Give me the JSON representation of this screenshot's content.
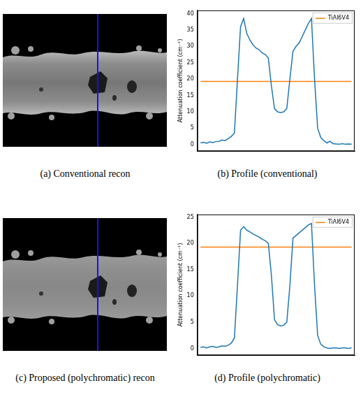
{
  "chart_data": [
    {
      "type": "line",
      "caption": "(b) Profile (conventional)",
      "y_label": "Attenuation coefficient (cm⁻¹)",
      "x": [
        0,
        2,
        4,
        6,
        8,
        10,
        12,
        14,
        16,
        18,
        20,
        22,
        24,
        26,
        28,
        30,
        32,
        34,
        36,
        38,
        40,
        42,
        44,
        46,
        48,
        50,
        52,
        54,
        56,
        58,
        60,
        62,
        64,
        66,
        68,
        70,
        72,
        74,
        76,
        78,
        80,
        82,
        84,
        86,
        88,
        90,
        92,
        94,
        96,
        98
      ],
      "series": [
        {
          "color": "#1f77b4",
          "values": [
            0.5,
            0.7,
            0.4,
            0.8,
            0.6,
            0.9,
            1.0,
            1.4,
            1.2,
            1.8,
            2.5,
            3.5,
            20,
            36,
            38.5,
            34,
            32,
            30.5,
            29.5,
            29,
            28,
            27.5,
            26.5,
            18,
            11,
            10,
            9.8,
            10,
            11,
            20,
            28.5,
            30,
            31,
            33,
            35,
            37,
            38.5,
            20,
            5,
            2.2,
            1.2,
            0.5,
            1.0,
            0.3,
            0.2,
            0.1,
            0.3,
            0.1,
            0.2,
            0.1
          ]
        },
        {
          "name": "TiAl6V4",
          "color": "#ff7f0e",
          "values": [
            19.3,
            19.3,
            19.3,
            19.3,
            19.3,
            19.3,
            19.3,
            19.3,
            19.3,
            19.3,
            19.3,
            19.3,
            19.3,
            19.3,
            19.3,
            19.3,
            19.3,
            19.3,
            19.3,
            19.3,
            19.3,
            19.3,
            19.3,
            19.3,
            19.3,
            19.3,
            19.3,
            19.3,
            19.3,
            19.3,
            19.3,
            19.3,
            19.3,
            19.3,
            19.3,
            19.3,
            19.3,
            19.3,
            19.3,
            19.3,
            19.3,
            19.3,
            19.3,
            19.3,
            19.3,
            19.3,
            19.3,
            19.3,
            19.3,
            19.3
          ]
        }
      ],
      "xlim": [
        -2,
        100
      ],
      "xticks": [],
      "ylim": [
        -2,
        41
      ],
      "yticks": [
        0,
        5,
        10,
        15,
        20,
        25,
        30,
        35,
        40
      ],
      "grid": false,
      "legend": "upper right",
      "tick_labels": "y"
    },
    {
      "type": "line",
      "caption": "(d) Profile (polychromatic)",
      "y_label": "Attenuation coefficient (cm⁻¹)",
      "x": [
        0,
        2,
        4,
        6,
        8,
        10,
        12,
        14,
        16,
        18,
        20,
        22,
        24,
        26,
        28,
        30,
        32,
        34,
        36,
        38,
        40,
        42,
        44,
        46,
        48,
        50,
        52,
        54,
        56,
        58,
        60,
        62,
        64,
        66,
        68,
        70,
        72,
        74,
        76,
        78,
        80,
        82,
        84,
        86,
        88,
        90,
        92,
        94,
        96,
        98
      ],
      "series": [
        {
          "color": "#1f77b4",
          "values": [
            0.2,
            0.3,
            0.1,
            0.3,
            0.4,
            0.2,
            0.3,
            0.5,
            0.4,
            0.6,
            1.0,
            2.0,
            12,
            22.5,
            23.2,
            22.5,
            22.2,
            21.8,
            21.5,
            21.2,
            20.8,
            20.5,
            20,
            14,
            5.5,
            4.5,
            4.3,
            4.4,
            5,
            12,
            21,
            21.5,
            22,
            22.5,
            23,
            23.5,
            23.8,
            12,
            2.5,
            0.8,
            0.3,
            0.1,
            0.0,
            0.1,
            0.1,
            0.0,
            0.1,
            0.1,
            0.0,
            0.1
          ]
        },
        {
          "name": "TiAl6V4",
          "color": "#ff7f0e",
          "values": [
            19.3,
            19.3,
            19.3,
            19.3,
            19.3,
            19.3,
            19.3,
            19.3,
            19.3,
            19.3,
            19.3,
            19.3,
            19.3,
            19.3,
            19.3,
            19.3,
            19.3,
            19.3,
            19.3,
            19.3,
            19.3,
            19.3,
            19.3,
            19.3,
            19.3,
            19.3,
            19.3,
            19.3,
            19.3,
            19.3,
            19.3,
            19.3,
            19.3,
            19.3,
            19.3,
            19.3,
            19.3,
            19.3,
            19.3,
            19.3,
            19.3,
            19.3,
            19.3,
            19.3,
            19.3,
            19.3,
            19.3,
            19.3,
            19.3,
            19.3
          ]
        }
      ],
      "xlim": [
        -2,
        100
      ],
      "xticks": [],
      "ylim": [
        -1.3,
        25.5
      ],
      "yticks": [
        0,
        5,
        10,
        15,
        20,
        25
      ],
      "grid": false,
      "legend": "upper right",
      "tick_labels": "y"
    }
  ],
  "images": [
    {
      "caption": "(a) Conventional recon"
    },
    {
      "caption": "(c) Proposed (polychromatic) recon"
    }
  ]
}
